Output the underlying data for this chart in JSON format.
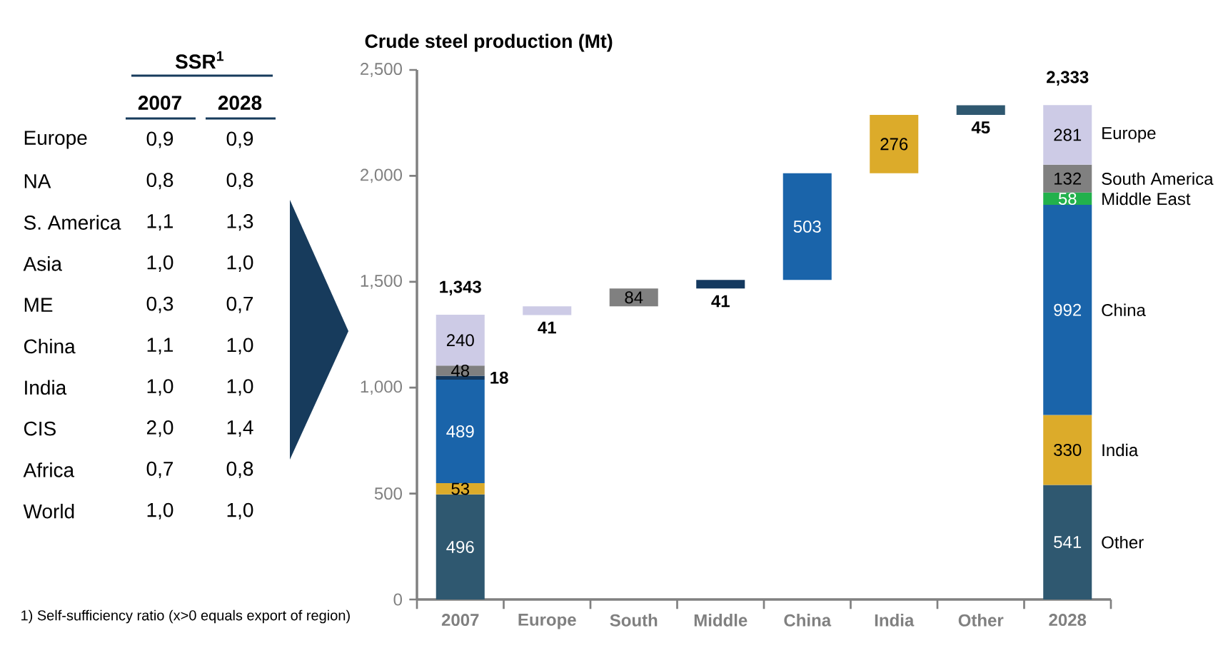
{
  "chart_data": [
    {
      "type": "other",
      "title": "SSR$^{1}$",
      "categories": [
        "Europe",
        "NA",
        "S. America",
        "Asia",
        "ME",
        "China",
        "India",
        "CIS",
        "Africa",
        "World"
      ],
      "series": [
        {
          "name": "2007",
          "values": [
            0.9,
            0.8,
            1.1,
            1.0,
            0.3,
            1.1,
            1.0,
            2.0,
            0.7,
            1.0
          ],
          "value_labels": [
            "0,9",
            "0,8",
            "1,1",
            "1,0",
            "0,3",
            "1,1",
            "1,0",
            "2,0",
            "0,7",
            "1,0"
          ]
        },
        {
          "name": "2028",
          "values": [
            0.9,
            0.8,
            1.3,
            1.0,
            0.7,
            1.0,
            1.0,
            1.4,
            0.8,
            1.0
          ],
          "value_labels": [
            "0,9",
            "0,8",
            "1,3",
            "1,0",
            "0,7",
            "1,0",
            "1,0",
            "1,4",
            "0,8",
            "1,0"
          ]
        }
      ],
      "annotations": [
        "1) Self-sufficiency ratio (x>0 equals export of region)"
      ]
    },
    {
      "type": "bar",
      "title": "Crude steel production (Mt)",
      "categories": [
        "2007",
        "Europe",
        "South",
        "Middle",
        "China",
        "India",
        "Other",
        "2028"
      ],
      "stacked": true,
      "data_labels": true,
      "series": [
        {
          "name": "Other",
          "color": "#2f5870",
          "values": [
            496,
            null,
            null,
            null,
            null,
            null,
            45,
            541
          ],
          "base": [
            null,
            null,
            null,
            null,
            null,
            null,
            2288,
            null
          ]
        },
        {
          "name": "India",
          "color": "#dcab2a",
          "values": [
            53,
            null,
            null,
            null,
            null,
            276,
            null,
            330
          ],
          "base": [
            null,
            null,
            null,
            null,
            null,
            2012,
            null,
            null
          ]
        },
        {
          "name": "China",
          "color": "#1a64aa",
          "values": [
            489,
            null,
            null,
            null,
            503,
            null,
            null,
            992
          ],
          "base": [
            null,
            null,
            null,
            null,
            1509,
            null,
            null,
            null
          ]
        },
        {
          "name": "Middle East",
          "colors": [
            "#14395f",
            "#14395f",
            "#14395f",
            "#14395f",
            "#14395f",
            "#14395f",
            "#14395f",
            "#22b14c"
          ],
          "values": [
            18,
            null,
            null,
            41,
            null,
            null,
            null,
            58
          ],
          "base": [
            null,
            null,
            null,
            1468,
            null,
            null,
            null,
            null
          ]
        },
        {
          "name": "South America",
          "color": "#808080",
          "values": [
            48,
            null,
            84,
            null,
            null,
            null,
            null,
            132
          ],
          "base": [
            null,
            null,
            1384,
            null,
            null,
            null,
            null,
            null
          ]
        },
        {
          "name": "Europe",
          "color": "#cdcbe6",
          "values": [
            240,
            41,
            null,
            null,
            null,
            null,
            null,
            281
          ],
          "base": [
            null,
            1343,
            null,
            null,
            null,
            null,
            null,
            null
          ]
        }
      ],
      "totals": [
        "1,343",
        null,
        null,
        null,
        null,
        null,
        null,
        "2,333"
      ],
      "ylim": [
        0,
        2500
      ],
      "yticks": [
        0,
        500,
        {
          "value": 1000,
          "label": "1,000"
        },
        {
          "value": 1500,
          "label": "1,500"
        },
        {
          "value": 2000,
          "label": "2,000"
        },
        {
          "value": 2500,
          "label": "2,500"
        }
      ]
    }
  ]
}
